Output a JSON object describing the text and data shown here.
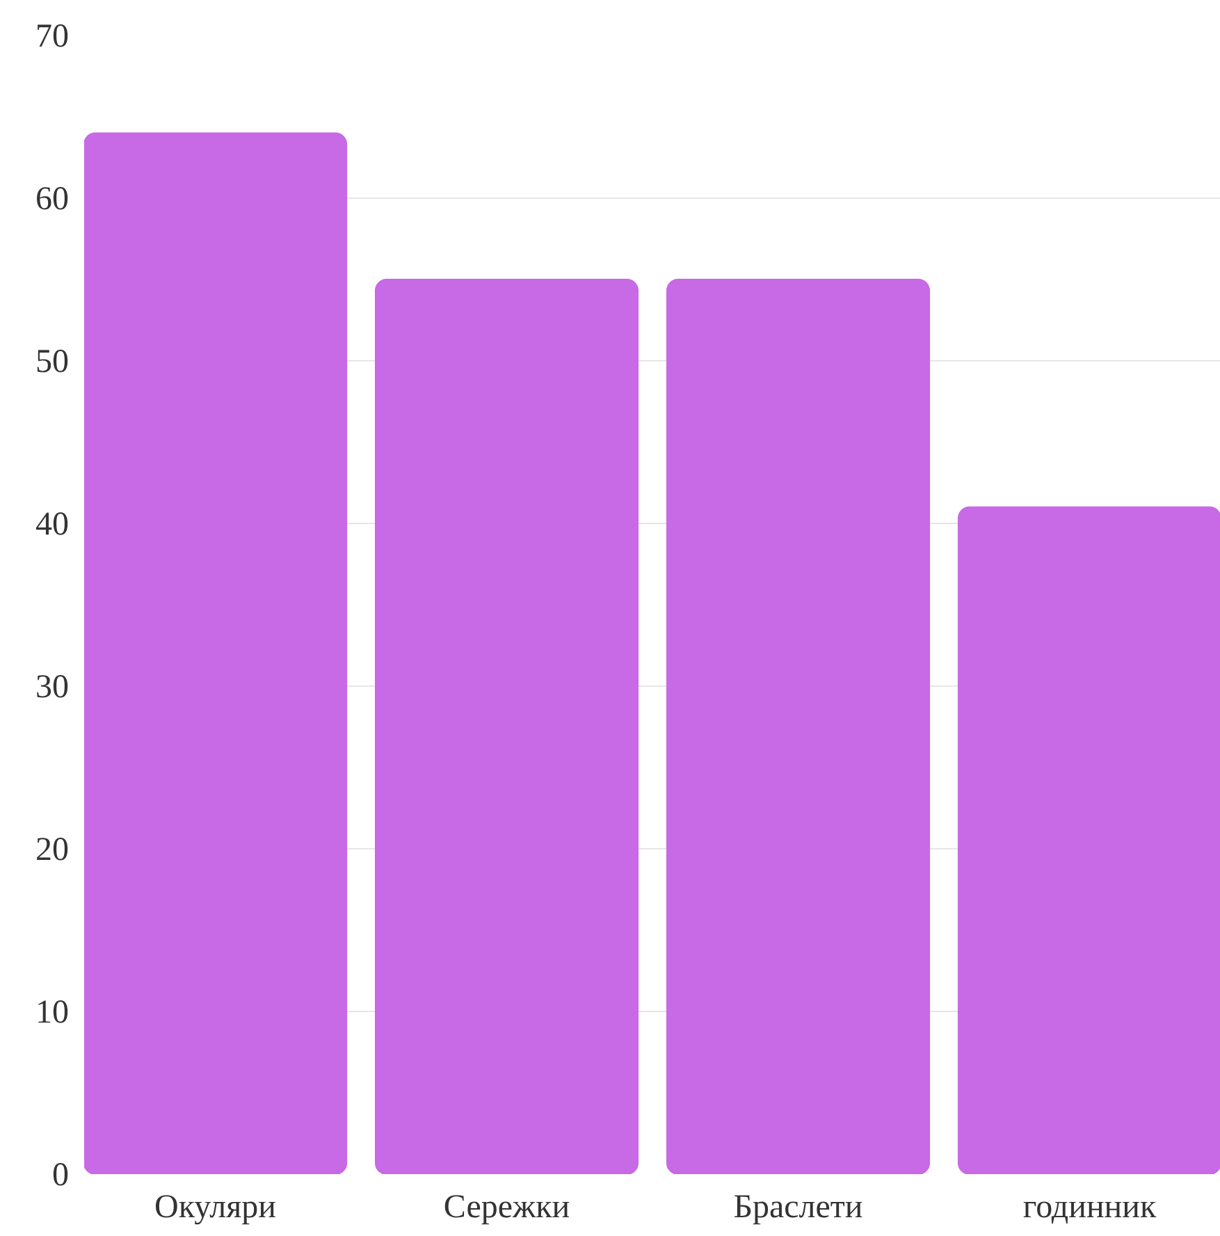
{
  "chart_data": {
    "type": "bar",
    "categories": [
      "Окуляри",
      "Сережки",
      "Браслети",
      "годинник"
    ],
    "values": [
      64,
      55,
      55,
      41
    ],
    "color": "#c869e6",
    "ylim": [
      0,
      70
    ],
    "yticks": [
      0,
      10,
      20,
      30,
      40,
      50,
      60,
      70
    ],
    "grid": "y"
  }
}
